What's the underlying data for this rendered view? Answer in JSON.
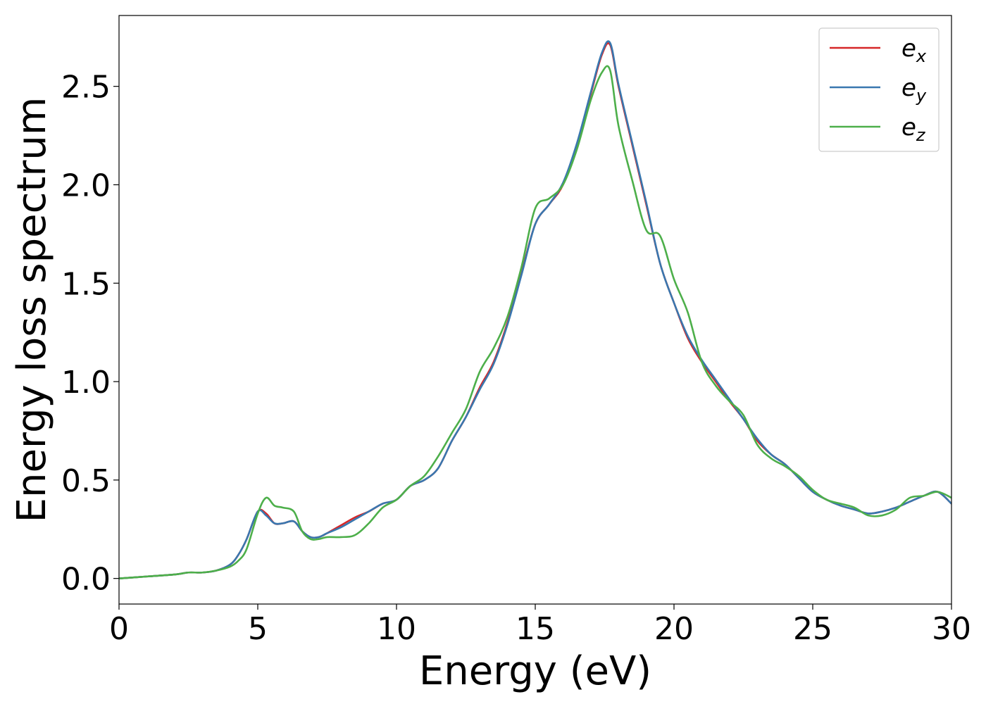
{
  "chart_data": {
    "type": "line",
    "title": "",
    "xlabel": "Energy (eV)",
    "ylabel": "Energy loss spectrum",
    "xlim": [
      0,
      30
    ],
    "ylim": [
      -0.13,
      2.86
    ],
    "xticks": [
      0,
      5,
      10,
      15,
      20,
      25,
      30
    ],
    "xtick_labels": [
      "0",
      "5",
      "10",
      "15",
      "20",
      "25",
      "30"
    ],
    "yticks": [
      0.0,
      0.5,
      1.0,
      1.5,
      2.0,
      2.5
    ],
    "ytick_labels": [
      "0.0",
      "0.5",
      "1.0",
      "1.5",
      "2.0",
      "2.5"
    ],
    "grid": false,
    "legend_position": "top-right",
    "series": [
      {
        "name": "e_x",
        "label_base": "e",
        "label_sub": "x",
        "color": "#d62728",
        "x": [
          0,
          1,
          2,
          2.5,
          3,
          3.5,
          4,
          4.3,
          4.6,
          5.0,
          5.3,
          5.6,
          5.9,
          6.3,
          6.6,
          6.9,
          7.2,
          7.5,
          8,
          8.5,
          9,
          9.5,
          10,
          10.5,
          11,
          11.5,
          12,
          12.5,
          13,
          13.5,
          14,
          14.5,
          15,
          15.5,
          16,
          16.5,
          17,
          17.4,
          17.7,
          18,
          18.5,
          19,
          19.5,
          20,
          20.5,
          21,
          21.5,
          22,
          22.5,
          23,
          23.5,
          24,
          24.5,
          25,
          25.5,
          26,
          26.5,
          27,
          27.5,
          28,
          28.5,
          29,
          29.5,
          30
        ],
        "y": [
          0.0,
          0.01,
          0.02,
          0.03,
          0.03,
          0.04,
          0.07,
          0.12,
          0.2,
          0.34,
          0.33,
          0.28,
          0.28,
          0.29,
          0.24,
          0.21,
          0.21,
          0.23,
          0.27,
          0.31,
          0.34,
          0.38,
          0.4,
          0.47,
          0.5,
          0.56,
          0.7,
          0.82,
          0.97,
          1.1,
          1.3,
          1.55,
          1.8,
          1.9,
          2.0,
          2.2,
          2.46,
          2.66,
          2.71,
          2.5,
          2.2,
          1.9,
          1.6,
          1.4,
          1.22,
          1.1,
          1.0,
          0.9,
          0.81,
          0.7,
          0.63,
          0.58,
          0.51,
          0.44,
          0.4,
          0.37,
          0.35,
          0.33,
          0.34,
          0.36,
          0.39,
          0.42,
          0.44,
          0.38
        ]
      },
      {
        "name": "e_y",
        "label_base": "e",
        "label_sub": "y",
        "color": "#3977af",
        "x": [
          0,
          1,
          2,
          2.5,
          3,
          3.5,
          4,
          4.3,
          4.6,
          5.0,
          5.3,
          5.6,
          5.9,
          6.3,
          6.6,
          6.9,
          7.2,
          7.5,
          8,
          8.5,
          9,
          9.5,
          10,
          10.5,
          11,
          11.5,
          12,
          12.5,
          13,
          13.5,
          14,
          14.5,
          15,
          15.5,
          16,
          16.5,
          17,
          17.4,
          17.7,
          18,
          18.5,
          19,
          19.5,
          20,
          20.5,
          21,
          21.5,
          22,
          22.5,
          23,
          23.5,
          24,
          24.5,
          25,
          25.5,
          26,
          26.5,
          27,
          27.5,
          28,
          28.5,
          29,
          29.5,
          30
        ],
        "y": [
          0.0,
          0.01,
          0.02,
          0.03,
          0.03,
          0.04,
          0.07,
          0.12,
          0.2,
          0.34,
          0.32,
          0.28,
          0.28,
          0.29,
          0.24,
          0.21,
          0.21,
          0.23,
          0.26,
          0.3,
          0.34,
          0.38,
          0.4,
          0.47,
          0.5,
          0.56,
          0.7,
          0.82,
          0.96,
          1.09,
          1.29,
          1.54,
          1.8,
          1.9,
          2.01,
          2.21,
          2.47,
          2.67,
          2.72,
          2.51,
          2.21,
          1.91,
          1.6,
          1.4,
          1.23,
          1.11,
          1.01,
          0.91,
          0.81,
          0.71,
          0.63,
          0.58,
          0.51,
          0.44,
          0.4,
          0.37,
          0.35,
          0.33,
          0.34,
          0.36,
          0.39,
          0.42,
          0.44,
          0.38
        ]
      },
      {
        "name": "e_z",
        "label_base": "e",
        "label_sub": "z",
        "color": "#4daf4a",
        "x": [
          0,
          1,
          2,
          2.5,
          3,
          3.5,
          4,
          4.3,
          4.6,
          5.0,
          5.3,
          5.6,
          5.9,
          6.3,
          6.6,
          6.9,
          7.2,
          7.5,
          8,
          8.5,
          9,
          9.5,
          10,
          10.5,
          11,
          11.5,
          12,
          12.5,
          13,
          13.5,
          14,
          14.5,
          15,
          15.5,
          16,
          16.5,
          17,
          17.4,
          17.7,
          18,
          18.5,
          19,
          19.5,
          20,
          20.5,
          21,
          21.5,
          22,
          22.5,
          23,
          23.5,
          24,
          24.5,
          25,
          25.5,
          26,
          26.5,
          27,
          27.5,
          28,
          28.5,
          29,
          29.5,
          30
        ],
        "y": [
          0.0,
          0.01,
          0.02,
          0.03,
          0.03,
          0.04,
          0.06,
          0.09,
          0.15,
          0.33,
          0.41,
          0.37,
          0.36,
          0.34,
          0.24,
          0.2,
          0.2,
          0.21,
          0.21,
          0.22,
          0.28,
          0.36,
          0.4,
          0.47,
          0.52,
          0.62,
          0.74,
          0.86,
          1.05,
          1.17,
          1.33,
          1.58,
          1.88,
          1.93,
          2.0,
          2.18,
          2.43,
          2.57,
          2.58,
          2.3,
          2.02,
          1.77,
          1.74,
          1.52,
          1.35,
          1.1,
          0.98,
          0.9,
          0.83,
          0.68,
          0.61,
          0.57,
          0.52,
          0.45,
          0.4,
          0.38,
          0.36,
          0.32,
          0.32,
          0.35,
          0.41,
          0.42,
          0.44,
          0.41
        ]
      }
    ]
  }
}
